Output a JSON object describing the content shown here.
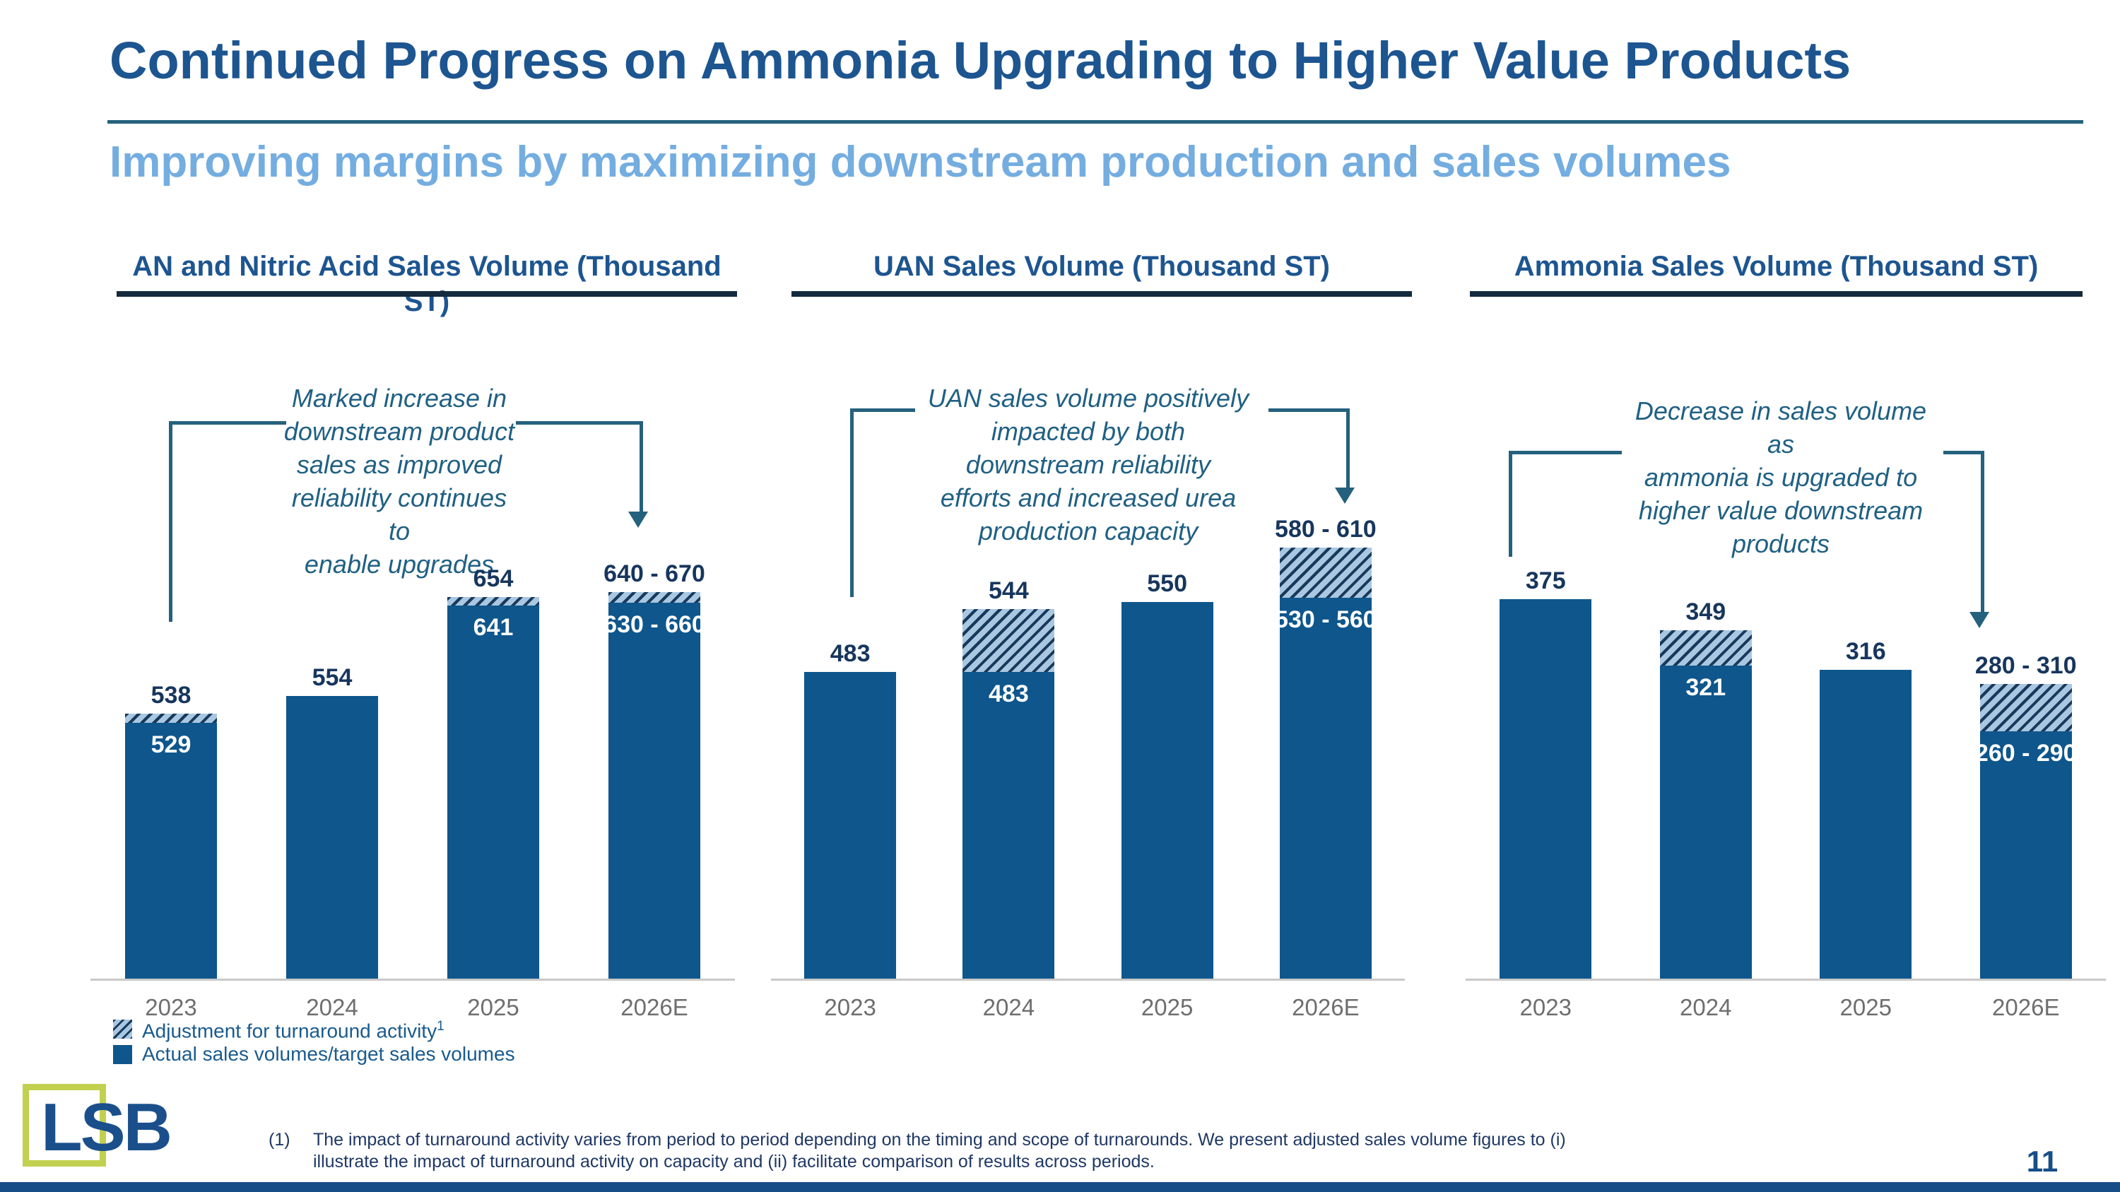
{
  "slide": {
    "title": "Continued Progress on Ammonia Upgrading to Higher Value Products",
    "subtitle": "Improving margins by maximizing downstream production and sales volumes",
    "page_number": "11",
    "logo_text": "LSB",
    "footnote_marker": "(1)",
    "footnote": "The impact of turnaround activity varies from period to period depending on the timing and scope of turnarounds. We present adjusted sales volume figures to (i) illustrate the impact of turnaround activity on capacity and (ii) facilitate comparison of results across periods."
  },
  "legend": {
    "hatch_label": "Adjustment for turnaround activity",
    "hatch_superscript": "1",
    "solid_label": "Actual sales volumes/target sales volumes"
  },
  "colors": {
    "bar": "#0E568C",
    "hatch_bg": "#A9C7E1",
    "hatch_stripe": "#17395C",
    "title": "#1D5590",
    "subtitle": "#74ADE0",
    "annotation": "#206083",
    "label_dark": "#17365D",
    "axis_label": "#6E6E6E",
    "accent_teal": "#24617D",
    "bottom_bar": "#174E87",
    "logo_green": "#C1D14F"
  },
  "chart_data": [
    {
      "type": "bar",
      "title": "AN and Nitric Acid Sales Volume (Thousand ST)",
      "ylabel": "Thousand ST",
      "annotation": "Marked increase in\ndownstream product\nsales as improved\nreliability continues to\nenable upgrades",
      "categories": [
        "2023",
        "2024",
        "2025",
        "2026E"
      ],
      "bars": [
        {
          "category": "2023",
          "solid_value": 529,
          "total_value": 538,
          "total_label": "538",
          "solid_label": "529",
          "has_adjustment": true
        },
        {
          "category": "2024",
          "solid_value": 554,
          "total_value": 554,
          "total_label": "554",
          "solid_label": null,
          "has_adjustment": false
        },
        {
          "category": "2025",
          "solid_value": 641,
          "total_value": 654,
          "total_label": "654",
          "solid_label": "641",
          "has_adjustment": true
        },
        {
          "category": "2026E",
          "solid_value": [
            630,
            660
          ],
          "total_value": [
            640,
            670
          ],
          "total_label": "640 - 670",
          "solid_label": "630 - 660",
          "has_adjustment": true
        }
      ]
    },
    {
      "type": "bar",
      "title": "UAN Sales Volume (Thousand ST)",
      "ylabel": "Thousand ST",
      "annotation": "UAN sales volume positively\nimpacted by both\ndownstream reliability\nefforts and increased urea\nproduction capacity",
      "categories": [
        "2023",
        "2024",
        "2025",
        "2026E"
      ],
      "bars": [
        {
          "category": "2023",
          "solid_value": 483,
          "total_value": 483,
          "total_label": "483",
          "solid_label": null,
          "has_adjustment": false
        },
        {
          "category": "2024",
          "solid_value": 483,
          "total_value": 544,
          "total_label": "544",
          "solid_label": "483",
          "has_adjustment": true
        },
        {
          "category": "2025",
          "solid_value": 550,
          "total_value": 550,
          "total_label": "550",
          "solid_label": null,
          "has_adjustment": false
        },
        {
          "category": "2026E",
          "solid_value": [
            530,
            560
          ],
          "total_value": [
            580,
            610
          ],
          "total_label": "580 - 610",
          "solid_label": "530 - 560",
          "has_adjustment": true
        }
      ]
    },
    {
      "type": "bar",
      "title": "Ammonia Sales Volume (Thousand ST)",
      "ylabel": "Thousand ST",
      "annotation": "Decrease in sales volume as\nammonia is upgraded to\nhigher value downstream\nproducts",
      "categories": [
        "2023",
        "2024",
        "2025",
        "2026E"
      ],
      "bars": [
        {
          "category": "2023",
          "solid_value": 375,
          "total_value": 375,
          "total_label": "375",
          "solid_label": null,
          "has_adjustment": false
        },
        {
          "category": "2024",
          "solid_value": 321,
          "total_value": 349,
          "total_label": "349",
          "solid_label": "321",
          "has_adjustment": true
        },
        {
          "category": "2025",
          "solid_value": 316,
          "total_value": 316,
          "total_label": "316",
          "solid_label": null,
          "has_adjustment": false
        },
        {
          "category": "2026E",
          "solid_value": [
            260,
            290
          ],
          "total_value": [
            280,
            310
          ],
          "total_label": "280 - 310",
          "solid_label": "260 - 290",
          "has_adjustment": true
        }
      ]
    }
  ]
}
